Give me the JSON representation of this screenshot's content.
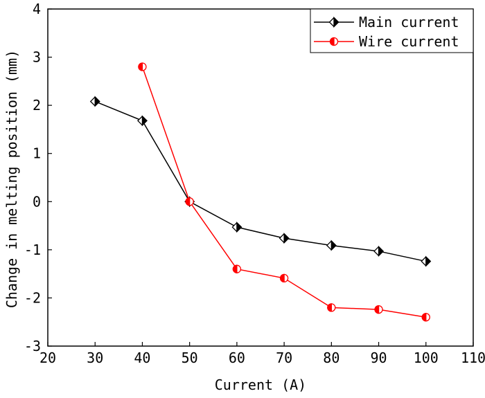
{
  "chart_data": {
    "type": "line",
    "xlabel": "Current (A)",
    "ylabel": "Change in melting position (mm)",
    "xlim": [
      20,
      110
    ],
    "ylim": [
      -3,
      4
    ],
    "xticks": [
      20,
      30,
      40,
      50,
      60,
      70,
      80,
      90,
      100,
      110
    ],
    "yticks": [
      -3,
      -2,
      -1,
      0,
      1,
      2,
      3,
      4
    ],
    "grid": false,
    "legend_position": "top-right",
    "series": [
      {
        "name": "Main current",
        "color": "#000000",
        "marker": "half-filled-diamond",
        "x": [
          30,
          40,
          50,
          60,
          70,
          80,
          90,
          100
        ],
        "y": [
          2.08,
          1.68,
          0.0,
          -0.53,
          -0.76,
          -0.91,
          -1.03,
          -1.24
        ]
      },
      {
        "name": "Wire current",
        "color": "#ff0000",
        "marker": "half-filled-circle",
        "x": [
          40,
          50,
          60,
          70,
          80,
          90,
          100
        ],
        "y": [
          2.8,
          0.0,
          -1.4,
          -1.59,
          -2.2,
          -2.24,
          -2.4
        ]
      }
    ]
  }
}
